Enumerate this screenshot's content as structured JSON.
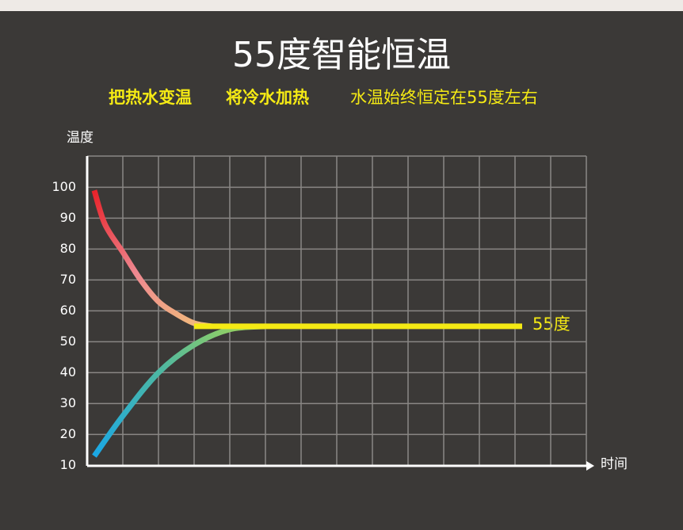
{
  "chart_data": {
    "type": "line",
    "title": "55度智能恒温",
    "subtitle_parts": [
      "把热水变温",
      "将冷水加热",
      "水温始终恒定在55度左右"
    ],
    "y_label": "温度",
    "x_label": "时间",
    "annotation": "55度",
    "xlim": [
      0,
      14
    ],
    "xticks": [
      0,
      1,
      2,
      3,
      4,
      5,
      6,
      7,
      8,
      9,
      10,
      11,
      12,
      13,
      14
    ],
    "ylim": [
      9.84,
      110.1
    ],
    "yticks": [
      10,
      20,
      30,
      40,
      50,
      60,
      70,
      80,
      90,
      100
    ],
    "grid": true,
    "series": [
      {
        "colors": [
          "#e8222a",
          "#ee8890",
          "#f2c07a"
        ],
        "x": [
          0.2,
          0.5,
          1,
          1.5,
          2,
          2.5,
          3,
          3.5
        ],
        "values": [
          99,
          88,
          79,
          70,
          63,
          59,
          56,
          55
        ]
      },
      {
        "colors": [
          "#1aa8e6",
          "#4fb8a0",
          "#a8d850"
        ],
        "x": [
          0.2,
          1,
          2,
          3,
          4,
          5
        ],
        "values": [
          13,
          26,
          40,
          49,
          54,
          55
        ]
      },
      {
        "colors": [
          "#f5ea14",
          "#f5ea14"
        ],
        "x": [
          3,
          12.2
        ],
        "values": [
          55,
          55
        ]
      }
    ]
  }
}
